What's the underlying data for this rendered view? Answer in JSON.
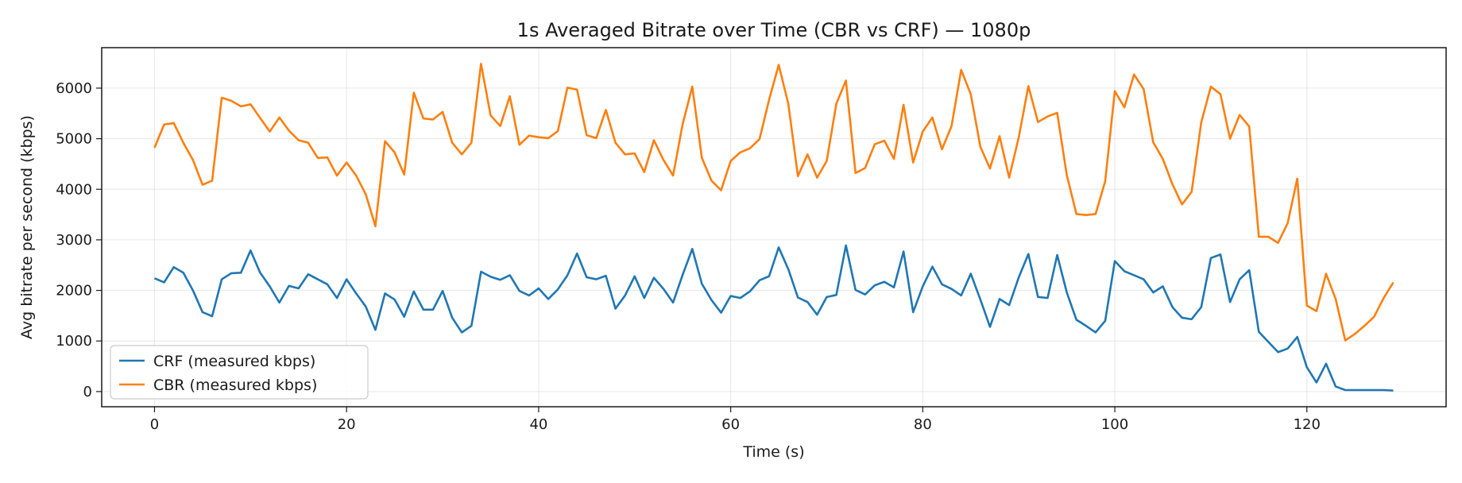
{
  "chart_data": {
    "type": "line",
    "title": "1s Averaged Bitrate over Time (CBR vs CRF) — 1080p",
    "xlabel": "Time (s)",
    "ylabel": "Avg bitrate per second (kbps)",
    "xlim": [
      -5.5,
      134.5
    ],
    "ylim": [
      -300,
      6800
    ],
    "xticks": [
      0,
      20,
      40,
      60,
      80,
      100,
      120
    ],
    "yticks": [
      0,
      1000,
      2000,
      3000,
      4000,
      5000,
      6000
    ],
    "grid": true,
    "legend_position": "lower-left",
    "series": [
      {
        "name": "CRF (measured kbps)",
        "color": "#1f77b4",
        "values": [
          2240,
          2160,
          2460,
          2350,
          2000,
          1570,
          1490,
          2220,
          2340,
          2350,
          2790,
          2350,
          2080,
          1760,
          2090,
          2040,
          2320,
          2220,
          2120,
          1850,
          2220,
          1940,
          1680,
          1220,
          1940,
          1820,
          1480,
          1980,
          1620,
          1620,
          1990,
          1460,
          1170,
          1300,
          2370,
          2270,
          2210,
          2300,
          1990,
          1900,
          2040,
          1830,
          2020,
          2300,
          2730,
          2260,
          2220,
          2290,
          1640,
          1900,
          2280,
          1850,
          2250,
          2030,
          1760,
          2310,
          2820,
          2130,
          1810,
          1560,
          1890,
          1850,
          1980,
          2200,
          2280,
          2850,
          2420,
          1860,
          1770,
          1520,
          1870,
          1910,
          2890,
          2010,
          1920,
          2100,
          2170,
          2060,
          2770,
          1570,
          2080,
          2470,
          2120,
          2030,
          1900,
          2330,
          1820,
          1280,
          1830,
          1710,
          2260,
          2720,
          1870,
          1850,
          2700,
          1960,
          1420,
          1300,
          1170,
          1400,
          2580,
          2380,
          2300,
          2220,
          1960,
          2080,
          1670,
          1460,
          1430,
          1670,
          2640,
          2710,
          1770,
          2220,
          2400,
          1180,
          980,
          780,
          850,
          1080,
          480,
          180,
          550,
          100,
          30,
          30,
          30,
          30,
          30,
          20
        ]
      },
      {
        "name": "CBR (measured kbps)",
        "color": "#ff7f0e",
        "values": [
          4820,
          5280,
          5310,
          4920,
          4580,
          4090,
          4170,
          5810,
          5750,
          5640,
          5680,
          5410,
          5140,
          5420,
          5160,
          4970,
          4920,
          4620,
          4630,
          4270,
          4530,
          4270,
          3900,
          3270,
          4950,
          4730,
          4290,
          5910,
          5400,
          5380,
          5530,
          4920,
          4690,
          4920,
          6480,
          5460,
          5250,
          5840,
          4880,
          5060,
          5030,
          5010,
          5150,
          6010,
          5970,
          5070,
          5010,
          5570,
          4920,
          4690,
          4710,
          4340,
          4970,
          4580,
          4270,
          5290,
          6030,
          4620,
          4170,
          3980,
          4560,
          4730,
          4810,
          4990,
          5770,
          6460,
          5690,
          4260,
          4690,
          4230,
          4560,
          5690,
          6150,
          4320,
          4420,
          4890,
          4960,
          4600,
          5670,
          4530,
          5140,
          5420,
          4790,
          5250,
          6360,
          5880,
          4840,
          4410,
          5050,
          4230,
          5030,
          6040,
          5330,
          5440,
          5510,
          4280,
          3510,
          3490,
          3510,
          4160,
          5940,
          5620,
          6270,
          5980,
          4930,
          4600,
          4100,
          3700,
          3950,
          5320,
          6030,
          5880,
          5000,
          5470,
          5240,
          3060,
          3060,
          2940,
          3330,
          4210,
          1700,
          1590,
          2330,
          1830,
          1010,
          1140,
          1300,
          1480,
          1850,
          2160
        ]
      }
    ]
  }
}
